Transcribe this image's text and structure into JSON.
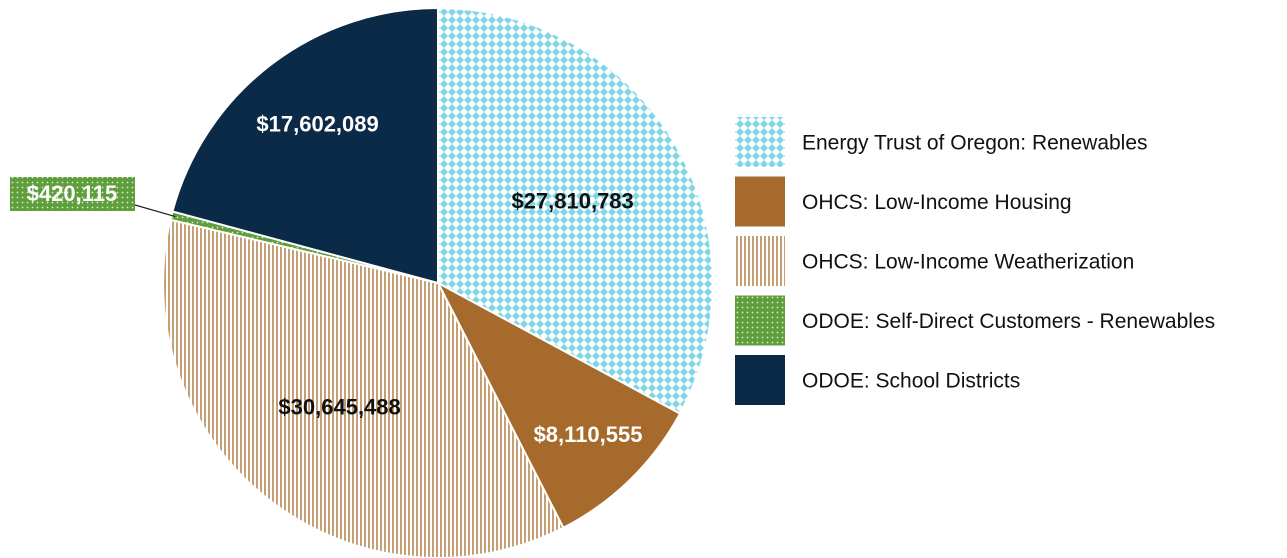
{
  "chart_data": {
    "type": "pie",
    "categories": [
      "Energy Trust of Oregon: Renewables",
      "OHCS: Low-Income Housing",
      "OHCS: Low-Income Weatherization",
      "ODOE: Self-Direct Customers - Renewables",
      "ODOE: School Districts"
    ],
    "values": [
      27810783,
      8110555,
      30645488,
      420115,
      17602089
    ],
    "value_labels": [
      "$27,810,783",
      "$8,110,555",
      "$30,645,488",
      "$420,115",
      "$17,602,089"
    ],
    "colors": [
      "#7fd6e6",
      "#a66b2c",
      "#c4a074",
      "#5e9e3c",
      "#0b2a48"
    ],
    "patterns": [
      "diamonds",
      "solid",
      "vertical-stripes",
      "dots",
      "solid"
    ],
    "legend": "right"
  }
}
